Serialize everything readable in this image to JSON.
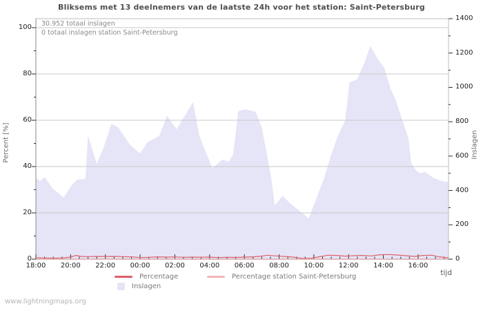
{
  "title": "Bliksems met 13 deelnemers van de laatste 24h voor het station: Saint-Petersburg",
  "annotations": {
    "total": "30.952 totaal inslagen",
    "station_total": "0 totaal inslagen station Saint-Petersburg"
  },
  "footer": "www.lightningmaps.org",
  "colors": {
    "area_fill": "#e5e5f7",
    "percentage_line": "#de6068",
    "station_line": "#f4b6ba",
    "grid": "#c9c9c9",
    "border": "#bdbdbd",
    "axis_bottom": "#333333",
    "axis_left": "#8a8a8a",
    "tick": "#2a2a2a",
    "tick_text": "#1c1c1c"
  },
  "legend": [
    {
      "label": "Percentage",
      "swatch": "line",
      "color": "#de6068"
    },
    {
      "label": "Percentage station Saint-Petersburg",
      "swatch": "line",
      "color": "#f4b6ba"
    },
    {
      "label": "Inslagen",
      "swatch": "box",
      "color": "#e5e5f7"
    }
  ],
  "chart_data": {
    "type": "area",
    "title": "Bliksems met 13 deelnemers van de laatste 24h voor het station: Saint-Petersburg",
    "xlabel": "tijd",
    "time_start": "18:00",
    "time_span_hours": 23.75,
    "x_major_ticks_hours": [
      0,
      2,
      4,
      6,
      8,
      10,
      12,
      14,
      16,
      18,
      20,
      22
    ],
    "x_labels": [
      "18:00",
      "20:00",
      "22:00",
      "00:00",
      "02:00",
      "04:00",
      "06:00",
      "08:00",
      "10:00",
      "12:00",
      "14:00",
      "16:00"
    ],
    "x_minor_step_hours": 0.5,
    "left_axis": {
      "label": "Percent  [%]",
      "ticks": [
        0,
        20,
        40,
        60,
        80,
        100
      ],
      "minor_step": 10,
      "range": [
        0,
        100
      ]
    },
    "right_axis": {
      "label": "Inslagen",
      "ticks": [
        0,
        200,
        400,
        600,
        800,
        1000,
        1200,
        1400
      ],
      "minor_step": 100,
      "range": [
        0,
        1400
      ]
    },
    "grid": "horizontal-only",
    "legend_position": "bottom",
    "series": [
      {
        "name": "Inslagen",
        "type": "area",
        "axis": "right",
        "points": [
          [
            0,
            472
          ],
          [
            0.25,
            456
          ],
          [
            0.5,
            478
          ],
          [
            1.0,
            408
          ],
          [
            1.6,
            360
          ],
          [
            2.1,
            436
          ],
          [
            2.4,
            464
          ],
          [
            2.85,
            468
          ],
          [
            3.0,
            720
          ],
          [
            3.5,
            556
          ],
          [
            3.9,
            650
          ],
          [
            4.35,
            788
          ],
          [
            4.75,
            766
          ],
          [
            5.4,
            668
          ],
          [
            6.0,
            615
          ],
          [
            6.4,
            678
          ],
          [
            7.1,
            718
          ],
          [
            7.55,
            835
          ],
          [
            8.1,
            756
          ],
          [
            9.05,
            915
          ],
          [
            9.4,
            720
          ],
          [
            10.15,
            530
          ],
          [
            10.75,
            580
          ],
          [
            11.1,
            568
          ],
          [
            11.35,
            608
          ],
          [
            11.65,
            862
          ],
          [
            12.05,
            872
          ],
          [
            12.65,
            858
          ],
          [
            13.0,
            768
          ],
          [
            13.3,
            608
          ],
          [
            13.55,
            470
          ],
          [
            13.75,
            315
          ],
          [
            14.2,
            368
          ],
          [
            14.7,
            320
          ],
          [
            15.0,
            295
          ],
          [
            15.45,
            260
          ],
          [
            15.7,
            236
          ],
          [
            16.0,
            316
          ],
          [
            16.6,
            475
          ],
          [
            17.0,
            608
          ],
          [
            17.4,
            721
          ],
          [
            17.8,
            808
          ],
          [
            18.05,
            1028
          ],
          [
            18.5,
            1048
          ],
          [
            18.9,
            1140
          ],
          [
            19.25,
            1241
          ],
          [
            19.7,
            1161
          ],
          [
            20.05,
            1116
          ],
          [
            20.4,
            996
          ],
          [
            20.7,
            928
          ],
          [
            21.1,
            808
          ],
          [
            21.45,
            700
          ],
          [
            21.6,
            560
          ],
          [
            21.85,
            520
          ],
          [
            22.1,
            500
          ],
          [
            22.4,
            508
          ],
          [
            22.9,
            472
          ],
          [
            23.3,
            458
          ],
          [
            23.75,
            448
          ]
        ]
      },
      {
        "name": "Percentage",
        "type": "line",
        "axis": "left",
        "points": [
          [
            0,
            0.6
          ],
          [
            0.5,
            0.5
          ],
          [
            1,
            0.45
          ],
          [
            1.5,
            0.5
          ],
          [
            2,
            0.9
          ],
          [
            2.3,
            1.6
          ],
          [
            2.6,
            1.2
          ],
          [
            3,
            1.1
          ],
          [
            3.5,
            1.2
          ],
          [
            4,
            1.15
          ],
          [
            4.5,
            1.2
          ],
          [
            5,
            1.1
          ],
          [
            5.5,
            1.0
          ],
          [
            6,
            0.7
          ],
          [
            6.5,
            0.8
          ],
          [
            7,
            1.0
          ],
          [
            7.5,
            0.9
          ],
          [
            8,
            0.95
          ],
          [
            8.5,
            0.8
          ],
          [
            9,
            0.9
          ],
          [
            9.5,
            0.85
          ],
          [
            10,
            0.9
          ],
          [
            10.5,
            0.7
          ],
          [
            11,
            0.8
          ],
          [
            11.5,
            0.75
          ],
          [
            12,
            0.9
          ],
          [
            12.5,
            1.0
          ],
          [
            13,
            1.3
          ],
          [
            13.3,
            1.7
          ],
          [
            13.8,
            1.4
          ],
          [
            14.3,
            1.2
          ],
          [
            14.8,
            0.9
          ],
          [
            15.3,
            0.4
          ],
          [
            15.8,
            0.35
          ],
          [
            16.3,
            1.0
          ],
          [
            16.8,
            1.7
          ],
          [
            17.3,
            1.6
          ],
          [
            17.8,
            1.3
          ],
          [
            18.3,
            1.5
          ],
          [
            18.8,
            1.6
          ],
          [
            19.3,
            1.4
          ],
          [
            19.8,
            1.9
          ],
          [
            20.3,
            2.0
          ],
          [
            20.8,
            1.8
          ],
          [
            21.3,
            1.5
          ],
          [
            21.8,
            1.2
          ],
          [
            22.3,
            1.6
          ],
          [
            22.8,
            1.7
          ],
          [
            23.2,
            1.0
          ],
          [
            23.75,
            0.6
          ]
        ]
      },
      {
        "name": "Percentage station Saint-Petersburg",
        "type": "line",
        "axis": "left",
        "points": [
          [
            0,
            0
          ],
          [
            23.75,
            0
          ]
        ]
      }
    ]
  }
}
